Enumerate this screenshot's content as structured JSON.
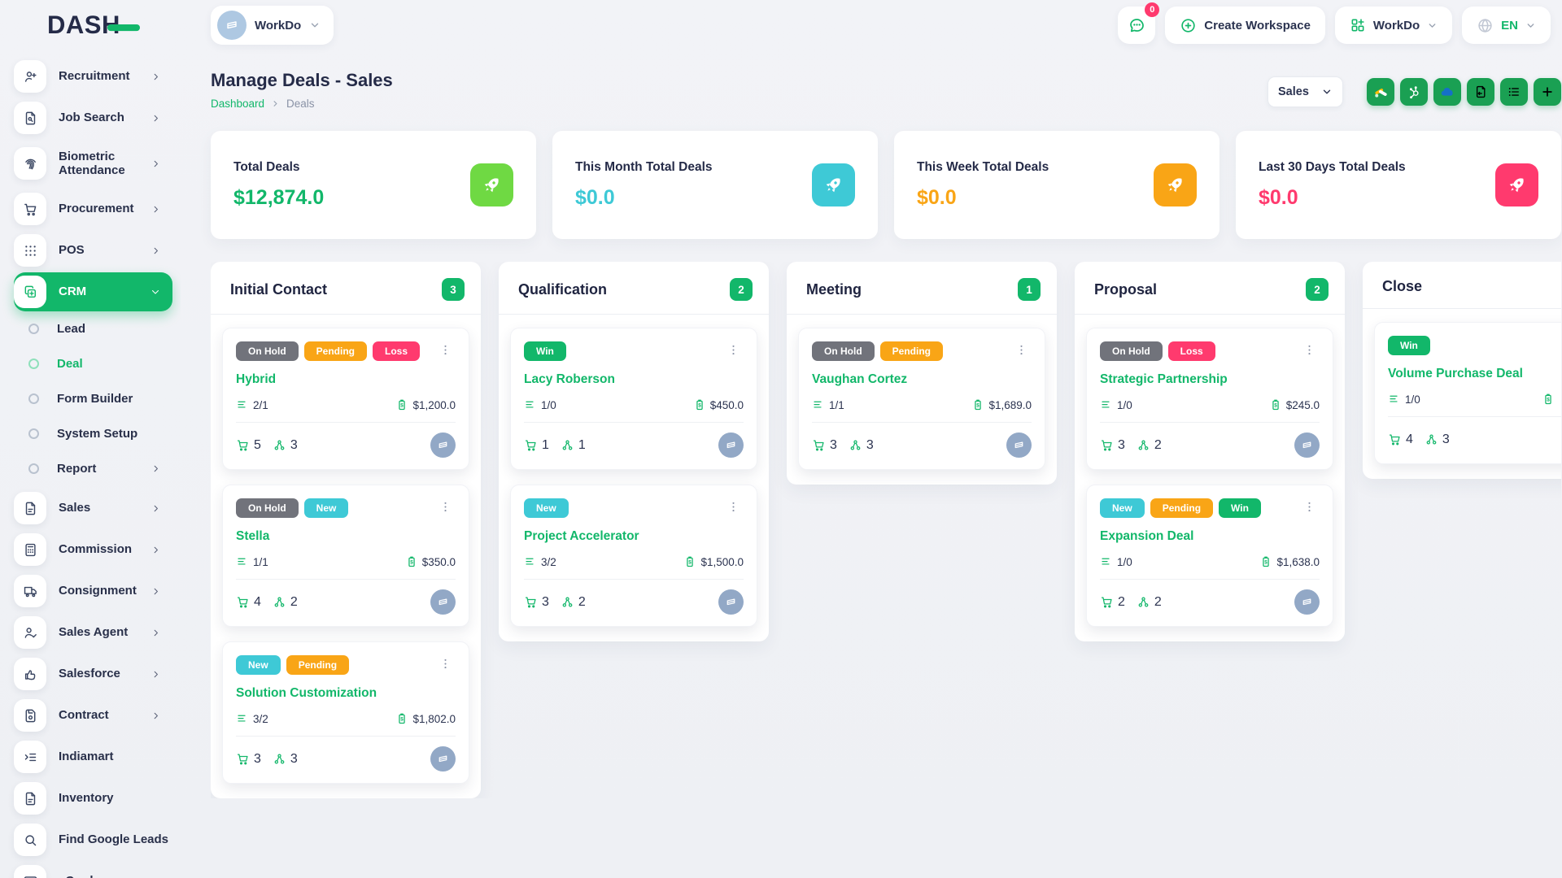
{
  "brand": {
    "logo_text": "DASH"
  },
  "topbar": {
    "workspace_label": "WorkDo",
    "notification_count": "0",
    "create_workspace_label": "Create Workspace",
    "workdo_label": "WorkDo",
    "language": "EN"
  },
  "sidebar": {
    "items": [
      {
        "label": "Recruitment",
        "icon": "user-plus",
        "type": "item",
        "chevron": "right"
      },
      {
        "label": "Job Search",
        "icon": "file-search",
        "type": "item",
        "chevron": "right"
      },
      {
        "label": "Biometric Attendance",
        "icon": "fingerprint",
        "type": "item",
        "chevron": "right",
        "two_line": true
      },
      {
        "label": "Procurement",
        "icon": "cart",
        "type": "item",
        "chevron": "right"
      },
      {
        "label": "POS",
        "icon": "grid-dots",
        "type": "item",
        "chevron": "right"
      },
      {
        "label": "CRM",
        "icon": "copy",
        "type": "item",
        "chevron": "down",
        "active": true
      },
      {
        "label": "Lead",
        "type": "sub"
      },
      {
        "label": "Deal",
        "type": "sub",
        "active": true
      },
      {
        "label": "Form Builder",
        "type": "sub"
      },
      {
        "label": "System Setup",
        "type": "sub"
      },
      {
        "label": "Report",
        "type": "sub",
        "chevron": "right"
      },
      {
        "label": "Sales",
        "icon": "file",
        "type": "item",
        "chevron": "right"
      },
      {
        "label": "Commission",
        "icon": "calculator",
        "type": "item",
        "chevron": "right"
      },
      {
        "label": "Consignment",
        "icon": "truck",
        "type": "item",
        "chevron": "right"
      },
      {
        "label": "Sales Agent",
        "icon": "user-check",
        "type": "item",
        "chevron": "right"
      },
      {
        "label": "Salesforce",
        "icon": "thumbs-up",
        "type": "item",
        "chevron": "right"
      },
      {
        "label": "Contract",
        "icon": "save",
        "type": "item",
        "chevron": "right"
      },
      {
        "label": "Indiamart",
        "icon": "list-arrow",
        "type": "item"
      },
      {
        "label": "Inventory",
        "icon": "file",
        "type": "item"
      },
      {
        "label": "Find Google Leads",
        "icon": "search",
        "type": "item"
      },
      {
        "label": "vCard",
        "icon": "id-card",
        "type": "item",
        "chevron": "right"
      }
    ]
  },
  "header": {
    "title": "Manage Deals - Sales",
    "breadcrumb": [
      "Dashboard",
      "Deals"
    ],
    "pipeline_select": "Sales",
    "action_buttons": [
      {
        "name": "google-adwords"
      },
      {
        "name": "hubspot"
      },
      {
        "name": "onedrive"
      },
      {
        "name": "import-doc"
      },
      {
        "name": "list-view"
      },
      {
        "name": "add"
      }
    ]
  },
  "stats": [
    {
      "label": "Total Deals",
      "value": "$12,874.0",
      "accent": "#12b76a",
      "icon_bg": "#6fd943"
    },
    {
      "label": "This Month Total Deals",
      "value": "$0.0",
      "accent": "#3ec9d6",
      "icon_bg": "#3ec9d6"
    },
    {
      "label": "This Week Total Deals",
      "value": "$0.0",
      "accent": "#f9a516",
      "icon_bg": "#f9a516"
    },
    {
      "label": "Last 30 Days Total Deals",
      "value": "$0.0",
      "accent": "#ff3a6e",
      "icon_bg": "#ff3a6e"
    }
  ],
  "board": {
    "columns": [
      {
        "title": "Initial Contact",
        "count": "3",
        "cards": [
          {
            "badges": [
              {
                "label": "On Hold",
                "color": "#71737b"
              },
              {
                "label": "Pending",
                "color": "#f9a516"
              },
              {
                "label": "Loss",
                "color": "#ff3a6e"
              }
            ],
            "title": "Hybrid",
            "tasks": "2/1",
            "amount": "$1,200.0",
            "products": "5",
            "users": "3"
          },
          {
            "badges": [
              {
                "label": "On Hold",
                "color": "#71737b"
              },
              {
                "label": "New",
                "color": "#3ec9d6"
              }
            ],
            "title": "Stella",
            "tasks": "1/1",
            "amount": "$350.0",
            "products": "4",
            "users": "2"
          },
          {
            "badges": [
              {
                "label": "New",
                "color": "#3ec9d6"
              },
              {
                "label": "Pending",
                "color": "#f9a516"
              }
            ],
            "title": "Solution Customization",
            "tasks": "3/2",
            "amount": "$1,802.0",
            "products": "3",
            "users": "3"
          }
        ]
      },
      {
        "title": "Qualification",
        "count": "2",
        "cards": [
          {
            "badges": [
              {
                "label": "Win",
                "color": "#12b76a"
              }
            ],
            "title": "Lacy Roberson",
            "tasks": "1/0",
            "amount": "$450.0",
            "products": "1",
            "users": "1"
          },
          {
            "badges": [
              {
                "label": "New",
                "color": "#3ec9d6"
              }
            ],
            "title": "Project Accelerator",
            "tasks": "3/2",
            "amount": "$1,500.0",
            "products": "3",
            "users": "2"
          }
        ]
      },
      {
        "title": "Meeting",
        "count": "1",
        "cards": [
          {
            "badges": [
              {
                "label": "On Hold",
                "color": "#71737b"
              },
              {
                "label": "Pending",
                "color": "#f9a516"
              }
            ],
            "title": "Vaughan Cortez",
            "tasks": "1/1",
            "amount": "$1,689.0",
            "products": "3",
            "users": "3"
          }
        ]
      },
      {
        "title": "Proposal",
        "count": "2",
        "cards": [
          {
            "badges": [
              {
                "label": "On Hold",
                "color": "#71737b"
              },
              {
                "label": "Loss",
                "color": "#ff3a6e"
              }
            ],
            "title": "Strategic Partnership",
            "tasks": "1/0",
            "amount": "$245.0",
            "products": "3",
            "users": "2"
          },
          {
            "badges": [
              {
                "label": "New",
                "color": "#3ec9d6"
              },
              {
                "label": "Pending",
                "color": "#f9a516"
              },
              {
                "label": "Win",
                "color": "#12b76a"
              }
            ],
            "title": "Expansion Deal",
            "tasks": "1/0",
            "amount": "$1,638.0",
            "products": "2",
            "users": "2"
          }
        ]
      },
      {
        "title": "Close",
        "count": "",
        "cards": [
          {
            "badges": [
              {
                "label": "Win",
                "color": "#12b76a"
              }
            ],
            "title": "Volume Purchase Deal",
            "tasks": "1/0",
            "amount": "",
            "products": "4",
            "users": "3"
          }
        ]
      }
    ]
  }
}
